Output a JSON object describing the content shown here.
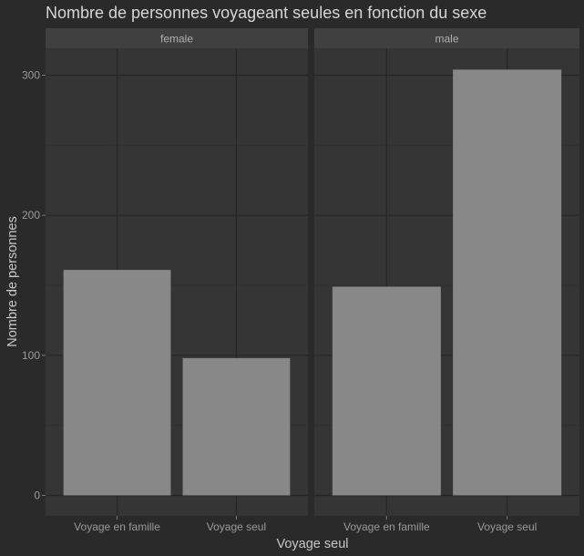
{
  "chart_data": {
    "type": "bar",
    "title": "Nombre de personnes voyageant seules en fonction du sexe",
    "xlabel": "Voyage seul",
    "ylabel": "Nombre de personnes",
    "ylim": [
      0,
      320
    ],
    "yticks": [
      0,
      100,
      200,
      300
    ],
    "grid": true,
    "categories": [
      "Voyage en famille",
      "Voyage seul"
    ],
    "facets": [
      {
        "label": "female",
        "values": [
          161,
          98
        ]
      },
      {
        "label": "male",
        "values": [
          149,
          304
        ]
      }
    ],
    "colors": {
      "background": "#2a2a2a",
      "panel": "#353535",
      "strip": "#404040",
      "grid_major": "#262626",
      "grid_minor": "#303030",
      "bar": "#888888"
    }
  }
}
